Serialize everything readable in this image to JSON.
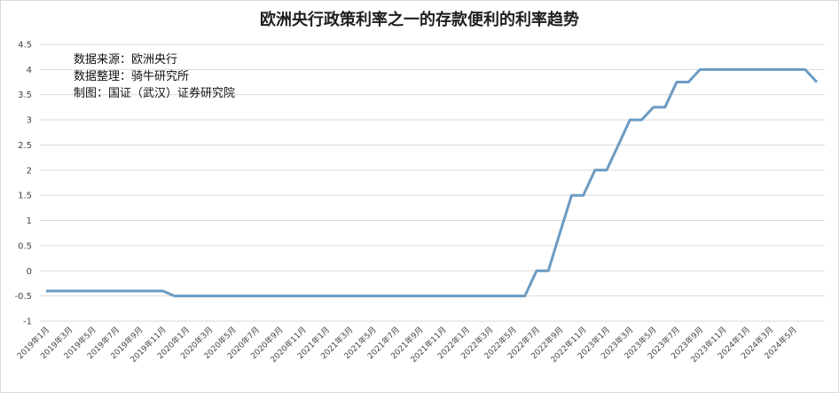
{
  "chart_data": {
    "type": "line",
    "title": "欧洲央行政策利率之一的存款便利的利率趋势",
    "notes": [
      "数据来源：欧洲央行",
      "数据整理：骑牛研究所",
      "制图：国证（武汉）证券研究院"
    ],
    "ylim": [
      -1,
      4.5
    ],
    "yticks": [
      "-1",
      "-0.5",
      "0",
      "0.5",
      "1",
      "1.5",
      "2",
      "2.5",
      "3",
      "3.5",
      "4",
      "4.5"
    ],
    "grid": true,
    "legend": "none",
    "line_color": "#6b9bc3",
    "categories": [
      "2019年1月",
      "2019年2月",
      "2019年3月",
      "2019年4月",
      "2019年5月",
      "2019年6月",
      "2019年7月",
      "2019年8月",
      "2019年9月",
      "2019年10月",
      "2019年11月",
      "2019年12月",
      "2020年1月",
      "2020年2月",
      "2020年3月",
      "2020年4月",
      "2020年5月",
      "2020年6月",
      "2020年7月",
      "2020年8月",
      "2020年9月",
      "2020年10月",
      "2020年11月",
      "2020年12月",
      "2021年1月",
      "2021年2月",
      "2021年3月",
      "2021年4月",
      "2021年5月",
      "2021年6月",
      "2021年7月",
      "2021年8月",
      "2021年9月",
      "2021年10月",
      "2021年11月",
      "2021年12月",
      "2022年1月",
      "2022年2月",
      "2022年3月",
      "2022年4月",
      "2022年5月",
      "2022年6月",
      "2022年7月",
      "2022年8月",
      "2022年9月",
      "2022年10月",
      "2022年11月",
      "2022年12月",
      "2023年1月",
      "2023年2月",
      "2023年3月",
      "2023年4月",
      "2023年5月",
      "2023年6月",
      "2023年7月",
      "2023年8月",
      "2023年9月",
      "2023年10月",
      "2023年11月",
      "2023年12月",
      "2024年1月",
      "2024年2月",
      "2024年3月",
      "2024年4月",
      "2024年5月",
      "2024年6月",
      "2024年7月"
    ],
    "xtick_labels": [
      "2019年1月",
      "2019年3月",
      "2019年5月",
      "2019年7月",
      "2019年9月",
      "2019年11月",
      "2020年1月",
      "2020年3月",
      "2020年5月",
      "2020年7月",
      "2020年9月",
      "2020年11月",
      "2021年1月",
      "2021年3月",
      "2021年5月",
      "2021年7月",
      "2021年9月",
      "2021年11月",
      "2022年1月",
      "2022年3月",
      "2022年5月",
      "2022年7月",
      "2022年9月",
      "2022年11月",
      "2023年1月",
      "2023年3月",
      "2023年5月",
      "2023年7月",
      "2023年9月",
      "2023年11月",
      "2024年1月",
      "2024年3月",
      "2024年5月"
    ],
    "values": [
      -0.4,
      -0.4,
      -0.4,
      -0.4,
      -0.4,
      -0.4,
      -0.4,
      -0.4,
      -0.4,
      -0.4,
      -0.4,
      -0.5,
      -0.5,
      -0.5,
      -0.5,
      -0.5,
      -0.5,
      -0.5,
      -0.5,
      -0.5,
      -0.5,
      -0.5,
      -0.5,
      -0.5,
      -0.5,
      -0.5,
      -0.5,
      -0.5,
      -0.5,
      -0.5,
      -0.5,
      -0.5,
      -0.5,
      -0.5,
      -0.5,
      -0.5,
      -0.5,
      -0.5,
      -0.5,
      -0.5,
      -0.5,
      -0.5,
      0,
      0,
      0.75,
      1.5,
      1.5,
      2,
      2,
      2.5,
      3,
      3,
      3.25,
      3.25,
      3.75,
      3.75,
      4,
      4,
      4,
      4,
      4,
      4,
      4,
      4,
      4,
      4,
      3.75
    ]
  }
}
